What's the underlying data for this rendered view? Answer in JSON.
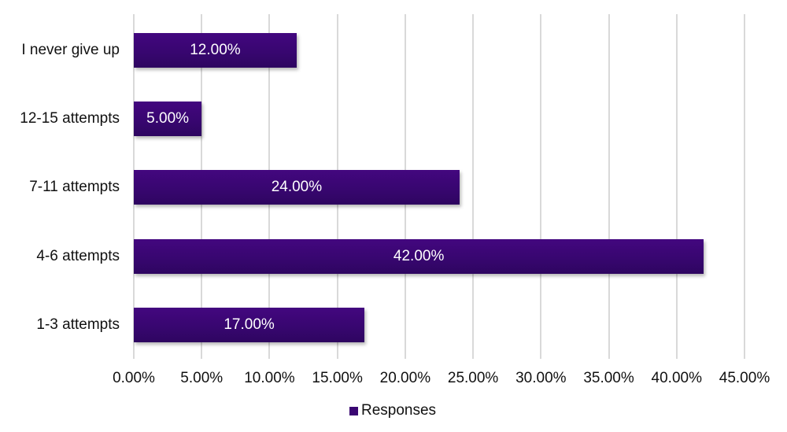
{
  "chart_data": {
    "type": "bar",
    "orientation": "horizontal",
    "title": "",
    "xlabel": "",
    "ylabel": "",
    "categories": [
      "I never give up",
      "12-15 attempts",
      "7-11 attempts",
      "4-6 attempts",
      "1-3 attempts"
    ],
    "series": [
      {
        "name": "Responses",
        "values": [
          12.0,
          5.0,
          24.0,
          42.0,
          17.0
        ],
        "color": "#3a0672"
      }
    ],
    "data_labels": [
      "12.00%",
      "5.00%",
      "24.00%",
      "42.00%",
      "17.00%"
    ],
    "xlim": [
      0,
      45
    ],
    "x_ticks": [
      "0.00%",
      "5.00%",
      "10.00%",
      "15.00%",
      "20.00%",
      "25.00%",
      "30.00%",
      "35.00%",
      "40.00%",
      "45.00%"
    ],
    "grid": true,
    "legend_position": "bottom"
  },
  "legend": {
    "label": "Responses"
  }
}
